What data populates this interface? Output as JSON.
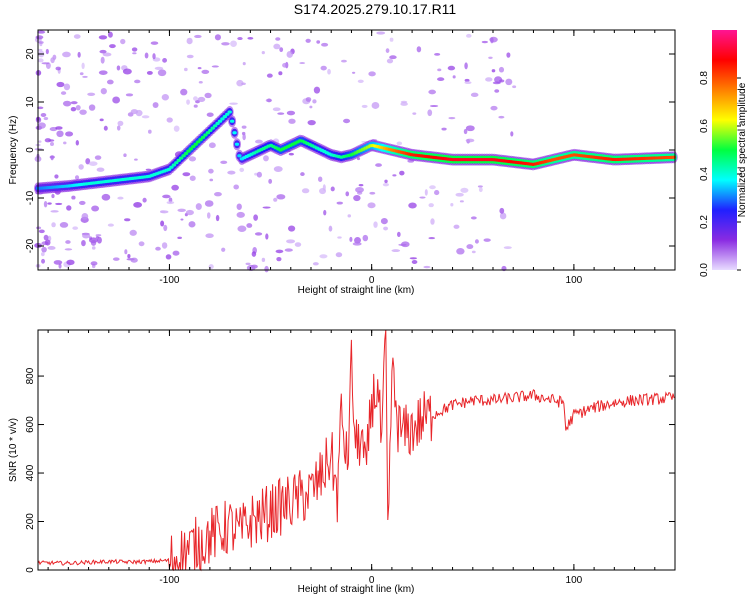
{
  "chart_data": [
    {
      "type": "heatmap",
      "title": "S174.2025.279.10.17.R11",
      "xlabel": "Height of straight line (km)",
      "ylabel": "Frequency (Hz)",
      "xlim": [
        -165,
        150
      ],
      "ylim": [
        -25,
        25
      ],
      "x_ticks": [
        -100,
        0,
        100
      ],
      "y_ticks": [
        -20,
        -10,
        0,
        10,
        20
      ],
      "colorbar": {
        "label": "Normalized spectral amplitude",
        "range": [
          0,
          1
        ],
        "ticks": [
          "0.0",
          "0.2",
          "0.4",
          "0.6",
          "0.8"
        ],
        "colors": [
          "#e8dcff",
          "#8a2be2",
          "#2020ff",
          "#00ffff",
          "#00ff40",
          "#ffff00",
          "#ff8000",
          "#ff0000",
          "#ff1493"
        ]
      },
      "trace": {
        "description_free": true,
        "x": [
          -165,
          -150,
          -140,
          -130,
          -120,
          -110,
          -100,
          -95,
          -90,
          -85,
          -80,
          -75,
          -70,
          -65,
          -60,
          -55,
          -50,
          -45,
          -40,
          -35,
          -30,
          -25,
          -20,
          -15,
          -10,
          -5,
          0,
          10,
          20,
          40,
          60,
          80,
          90,
          100,
          120,
          150
        ],
        "y": [
          -8,
          -7.5,
          -7,
          -6.5,
          -6,
          -5.5,
          -4,
          -2,
          0,
          2,
          4,
          6,
          8,
          -2,
          -1,
          0,
          1,
          0,
          1,
          2,
          1,
          0,
          -1,
          -1.5,
          -1,
          0,
          1,
          0,
          -1,
          -2,
          -2,
          -3,
          -2,
          -1,
          -2,
          -1.5
        ],
        "amp": [
          0.3,
          0.35,
          0.4,
          0.4,
          0.4,
          0.4,
          0.4,
          0.45,
          0.5,
          0.5,
          0.45,
          0.4,
          0.4,
          0.35,
          0.4,
          0.45,
          0.45,
          0.5,
          0.5,
          0.5,
          0.45,
          0.4,
          0.4,
          0.45,
          0.5,
          0.55,
          0.6,
          0.75,
          0.85,
          0.9,
          0.9,
          0.85,
          0.8,
          0.8,
          0.85,
          0.8
        ]
      }
    },
    {
      "type": "line",
      "xlabel": "Height of straight line (km)",
      "ylabel": "SNR (10 * v/v)",
      "xlim": [
        -165,
        150
      ],
      "ylim": [
        0,
        990
      ],
      "x_ticks": [
        -100,
        0,
        100
      ],
      "y_ticks": [
        0,
        200,
        400,
        600,
        800
      ],
      "color": "#e8262a",
      "x": [
        -165,
        -150,
        -140,
        -130,
        -120,
        -110,
        -100,
        -95,
        -90,
        -85,
        -80,
        -75,
        -70,
        -65,
        -60,
        -55,
        -50,
        -45,
        -40,
        -35,
        -30,
        -25,
        -20,
        -17,
        -15,
        -12,
        -10,
        -8,
        -5,
        -3,
        0,
        3,
        5,
        7,
        8,
        10,
        13,
        15,
        20,
        25,
        30,
        35,
        40,
        50,
        60,
        70,
        80,
        90,
        95,
        96,
        100,
        110,
        120,
        130,
        140,
        150
      ],
      "y": [
        30,
        28,
        32,
        35,
        33,
        35,
        40,
        60,
        90,
        110,
        140,
        160,
        180,
        150,
        200,
        220,
        240,
        260,
        280,
        300,
        320,
        380,
        480,
        300,
        650,
        420,
        850,
        500,
        550,
        380,
        700,
        750,
        500,
        990,
        90,
        820,
        600,
        560,
        580,
        620,
        640,
        660,
        680,
        700,
        700,
        710,
        720,
        700,
        690,
        580,
        640,
        670,
        690,
        700,
        705,
        710
      ]
    }
  ]
}
